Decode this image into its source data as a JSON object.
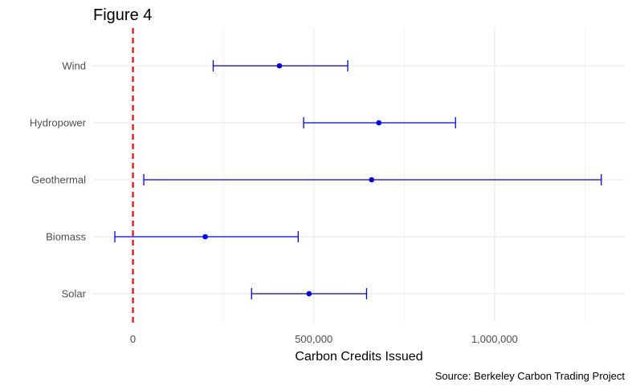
{
  "chart_data": {
    "type": "scatter",
    "title": "Figure 4",
    "xlabel": "Carbon Credits Issued",
    "ylabel": "",
    "caption": "Source: Berkeley Carbon Trading Project",
    "xlim": [
      -110000,
      1360000
    ],
    "x_ticks": [
      0,
      500000,
      1000000
    ],
    "x_tick_labels": [
      "0",
      "500,000",
      "1,000,000"
    ],
    "categories": [
      "Wind",
      "Hydropower",
      "Geothermal",
      "Biomass",
      "Solar"
    ],
    "estimate": [
      405000,
      680000,
      660000,
      200000,
      487000
    ],
    "lower": [
      222000,
      472000,
      30000,
      -50000,
      328000
    ],
    "upper": [
      594000,
      892000,
      1295000,
      457000,
      646000
    ],
    "reference_line": {
      "x": 0,
      "color": "#ff0000",
      "style": "dashed"
    },
    "grid": true,
    "legend": "none",
    "colors": {
      "point": "#0000ff",
      "reference": "#ff0000",
      "grid": "#ebebeb"
    }
  }
}
